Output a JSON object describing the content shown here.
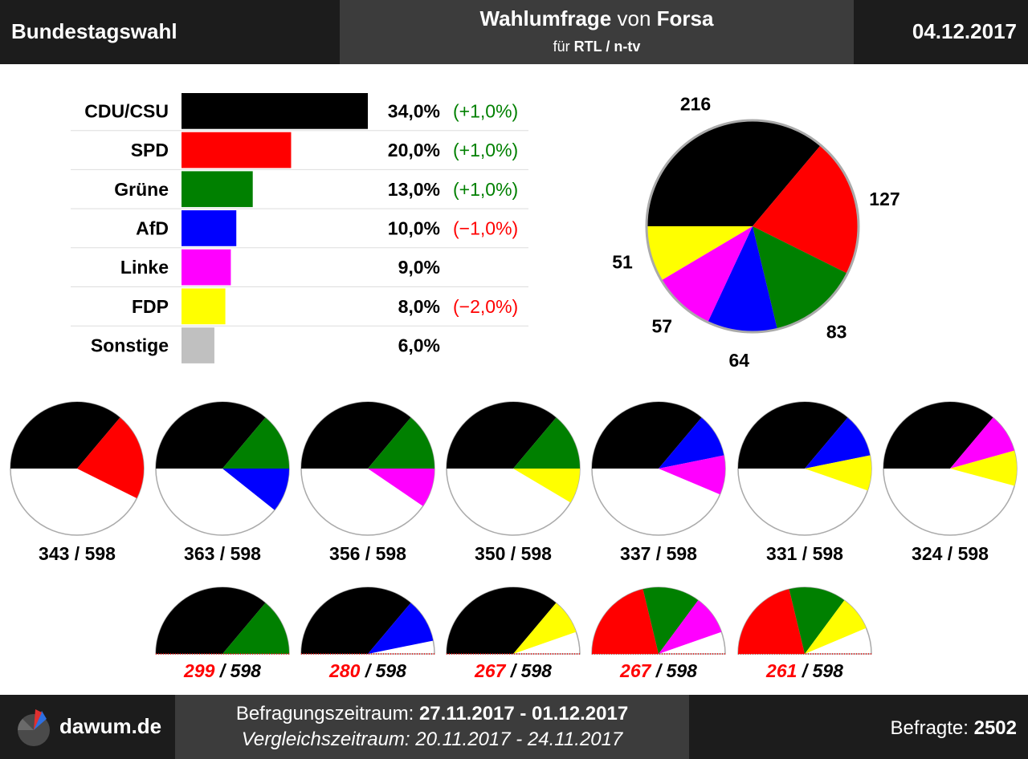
{
  "header": {
    "left": "Bundestagswahl",
    "title_bold1": "Wahlumfrage",
    "title_mid": " von ",
    "title_bold2": "Forsa",
    "sub_prefix": "für ",
    "sub_bold": "RTL / n-tv",
    "date": "04.12.2017"
  },
  "chart_data": {
    "type": "bar",
    "categories": [
      "CDU/CSU",
      "SPD",
      "Grüne",
      "AfD",
      "Linke",
      "FDP",
      "Sonstige"
    ],
    "values": [
      34.0,
      20.0,
      13.0,
      10.0,
      9.0,
      8.0,
      6.0
    ],
    "value_labels": [
      "34,0%",
      "20,0%",
      "13,0%",
      "10,0%",
      "9,0%",
      "8,0%",
      "6,0%"
    ],
    "changes": [
      "(+1,0%)",
      "(+1,0%)",
      "(+1,0%)",
      "(−1,0%)",
      "",
      "(−2,0%)",
      ""
    ],
    "colors": {
      "CDU/CSU": "#000000",
      "SPD": "#ff0000",
      "Grüne": "#008000",
      "AfD": "#0000ff",
      "Linke": "#ff00ff",
      "FDP": "#ffff00",
      "Sonstige": "#c0c0c0",
      "positive_change": "#008000",
      "negative_change": "#ff0000",
      "below_majority": "#ff0000"
    },
    "seats": {
      "total": 598,
      "parties": [
        "CDU/CSU",
        "SPD",
        "Grüne",
        "AfD",
        "Linke",
        "FDP"
      ],
      "values": [
        216,
        127,
        83,
        64,
        57,
        51
      ]
    },
    "coalitions": [
      {
        "parties": [
          "CDU/CSU",
          "SPD"
        ],
        "seats": 343,
        "label": "343",
        "total_label": "598"
      },
      {
        "parties": [
          "CDU/CSU",
          "Grüne",
          "AfD"
        ],
        "seats": 363,
        "label": "363",
        "total_label": "598"
      },
      {
        "parties": [
          "CDU/CSU",
          "Grüne",
          "Linke"
        ],
        "seats": 356,
        "label": "356",
        "total_label": "598"
      },
      {
        "parties": [
          "CDU/CSU",
          "Grüne",
          "FDP"
        ],
        "seats": 350,
        "label": "350",
        "total_label": "598"
      },
      {
        "parties": [
          "CDU/CSU",
          "AfD",
          "Linke"
        ],
        "seats": 337,
        "label": "337",
        "total_label": "598"
      },
      {
        "parties": [
          "CDU/CSU",
          "AfD",
          "FDP"
        ],
        "seats": 331,
        "label": "331",
        "total_label": "598"
      },
      {
        "parties": [
          "CDU/CSU",
          "Linke",
          "FDP"
        ],
        "seats": 324,
        "label": "324",
        "total_label": "598"
      },
      {
        "parties": [
          "CDU/CSU",
          "Grüne"
        ],
        "seats": 299,
        "label": "299",
        "total_label": "598"
      },
      {
        "parties": [
          "CDU/CSU",
          "AfD"
        ],
        "seats": 280,
        "label": "280",
        "total_label": "598"
      },
      {
        "parties": [
          "CDU/CSU",
          "FDP"
        ],
        "seats": 267,
        "label": "267",
        "total_label": "598"
      },
      {
        "parties": [
          "SPD",
          "Grüne",
          "Linke"
        ],
        "seats": 267,
        "label": "267",
        "total_label": "598"
      },
      {
        "parties": [
          "SPD",
          "Grüne",
          "FDP"
        ],
        "seats": 261,
        "label": "261",
        "total_label": "598"
      }
    ]
  },
  "footer": {
    "brand": "dawum.de",
    "period_label": "Befragungszeitraum: ",
    "period_value": "27.11.2017 - 01.12.2017",
    "compare_label": "Vergleichszeitraum: ",
    "compare_value": "20.11.2017 - 24.11.2017",
    "respondents_label": "Befragte: ",
    "respondents_value": "2502"
  }
}
